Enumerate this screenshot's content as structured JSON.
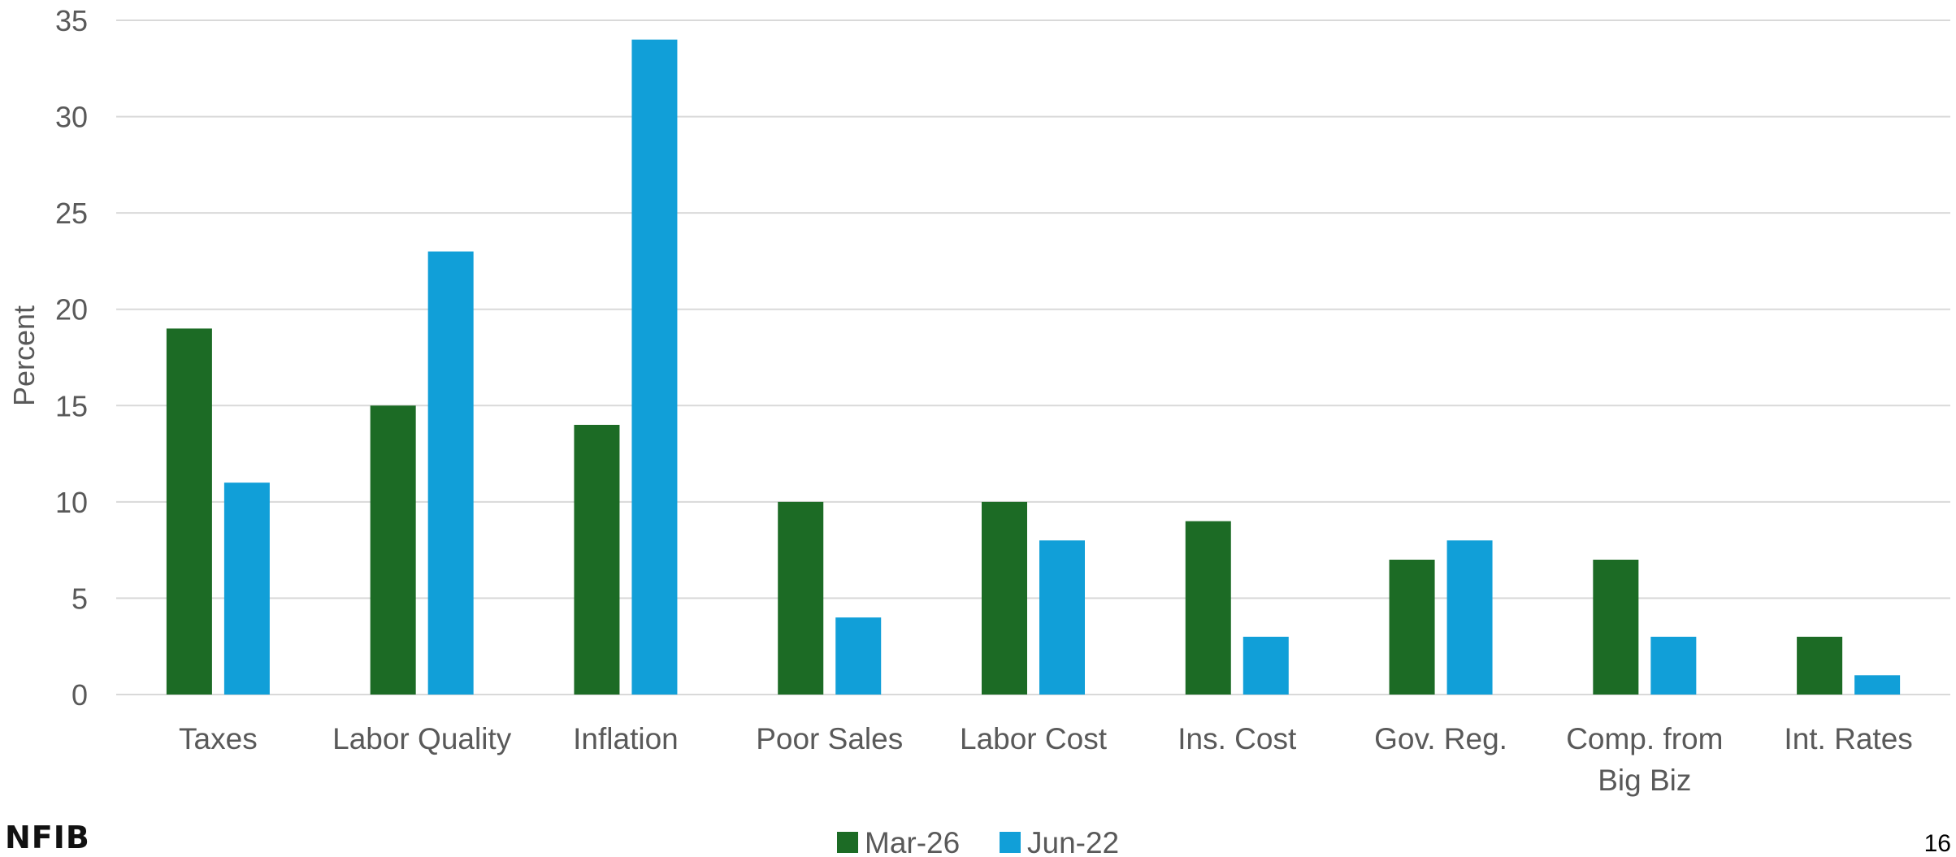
{
  "chart_data": {
    "type": "bar",
    "title": "",
    "xlabel": "",
    "ylabel": "Percent",
    "ylim": [
      0,
      35
    ],
    "yticks": [
      0,
      5,
      10,
      15,
      20,
      25,
      30,
      35
    ],
    "grid": true,
    "legend_position": "bottom-center",
    "categories": [
      [
        "Taxes"
      ],
      [
        "Labor Quality"
      ],
      [
        "Inflation"
      ],
      [
        "Poor Sales"
      ],
      [
        "Labor Cost"
      ],
      [
        "Ins. Cost"
      ],
      [
        "Gov. Reg."
      ],
      [
        "Comp. from",
        "Big Biz"
      ],
      [
        "Int. Rates"
      ]
    ],
    "series": [
      {
        "name": "Mar-26",
        "color": "#1C6B25",
        "values": [
          19,
          15,
          14,
          10,
          10,
          9,
          7,
          7,
          3
        ]
      },
      {
        "name": "Jun-22",
        "color": "#119FD8",
        "values": [
          11,
          23,
          34,
          4,
          8,
          3,
          8,
          3,
          1
        ]
      }
    ]
  },
  "footer": {
    "logo_text": "NFIB",
    "page_number": "16"
  },
  "colors": {
    "gridline": "#D9D9D9",
    "text": "#595959"
  }
}
